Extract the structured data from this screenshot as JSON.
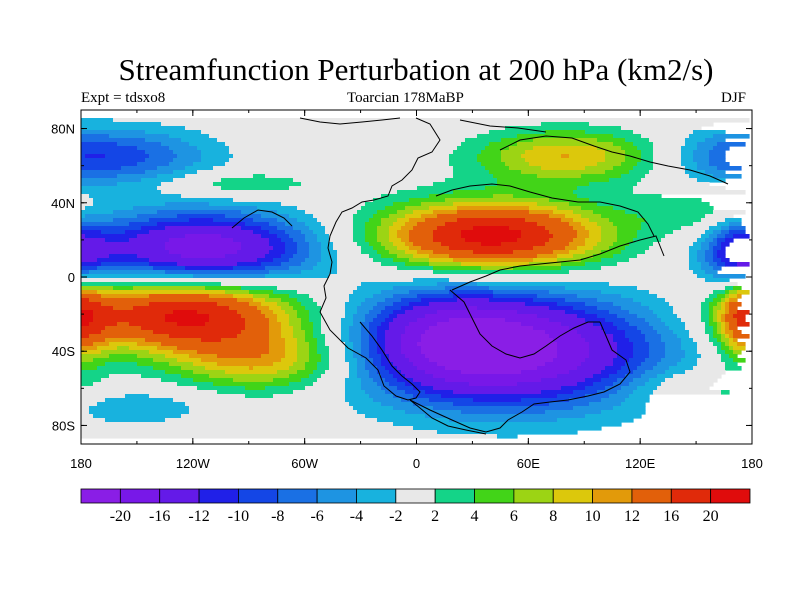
{
  "chart_data": {
    "type": "heatmap",
    "title": "Streamfunction Perturbation at 200 hPa (km2/s)",
    "left_label": "Expt = tdsxo8",
    "center_label": "Toarcian 178MaBP",
    "right_label": "DJF",
    "x_ticks": [
      {
        "value": -180,
        "label": "180"
      },
      {
        "value": -120,
        "label": "120W"
      },
      {
        "value": -60,
        "label": "60W"
      },
      {
        "value": 0,
        "label": "0"
      },
      {
        "value": 60,
        "label": "60E"
      },
      {
        "value": 120,
        "label": "120E"
      },
      {
        "value": 180,
        "label": "180"
      }
    ],
    "y_ticks": [
      {
        "value": 80,
        "label": "80N"
      },
      {
        "value": 40,
        "label": "40N"
      },
      {
        "value": 0,
        "label": "0"
      },
      {
        "value": -40,
        "label": "40S"
      },
      {
        "value": -80,
        "label": "80S"
      }
    ],
    "xlim": [
      -180,
      180
    ],
    "ylim": [
      -90,
      90
    ],
    "levels": [
      -20,
      -16,
      -12,
      -10,
      -8,
      -6,
      -4,
      -2,
      2,
      4,
      6,
      8,
      10,
      12,
      16,
      20
    ],
    "level_labels": [
      "-20",
      "-16",
      "-12",
      "-10",
      "-8",
      "-6",
      "-4",
      "-2",
      "2",
      "4",
      "6",
      "8",
      "10",
      "12",
      "16",
      "20"
    ],
    "colors": [
      "#8a1ee6",
      "#7818e8",
      "#641ae8",
      "#2020e8",
      "#1446e6",
      "#1a70e4",
      "#1e94e2",
      "#18b2de",
      "#e8e8e8",
      "#14d488",
      "#42d418",
      "#9cd414",
      "#dcc80c",
      "#e29a0a",
      "#e2600a",
      "#e02a0a",
      "#e00c0c"
    ],
    "field_features": [
      {
        "lon": -115,
        "lat": 15,
        "value": -19,
        "sx": 42,
        "sy": 14
      },
      {
        "lon": 40,
        "lat": 22,
        "value": 22,
        "sx": 42,
        "sy": 13
      },
      {
        "lon": 50,
        "lat": -40,
        "value": -21,
        "sx": 55,
        "sy": 21
      },
      {
        "lon": 18,
        "lat": -30,
        "value": -8,
        "sx": 32,
        "sy": 18
      },
      {
        "lon": -125,
        "lat": -20,
        "value": 21,
        "sx": 42,
        "sy": 14
      },
      {
        "lon": -80,
        "lat": -45,
        "value": 10,
        "sx": 34,
        "sy": 12
      },
      {
        "lon": 175,
        "lat": 10,
        "value": -14,
        "sx": 14,
        "sy": 13
      },
      {
        "lon": 178,
        "lat": -20,
        "value": 14,
        "sx": 12,
        "sy": 18
      },
      {
        "lon": 80,
        "lat": 65,
        "value": 10,
        "sx": 34,
        "sy": 10
      },
      {
        "lon": -150,
        "lat": 65,
        "value": -7,
        "sx": 32,
        "sy": 11
      },
      {
        "lon": 170,
        "lat": 65,
        "value": -6,
        "sx": 25,
        "sy": 11
      },
      {
        "lon": -95,
        "lat": 50,
        "value": 4.5,
        "sx": 28,
        "sy": 5
      },
      {
        "lon": 150,
        "lat": 35,
        "value": 4,
        "sx": 22,
        "sy": 8
      },
      {
        "lon": 150,
        "lat": -60,
        "value": 4,
        "sx": 28,
        "sy": 8
      },
      {
        "lon": -150,
        "lat": -70,
        "value": -4,
        "sx": 28,
        "sy": 7
      }
    ]
  }
}
